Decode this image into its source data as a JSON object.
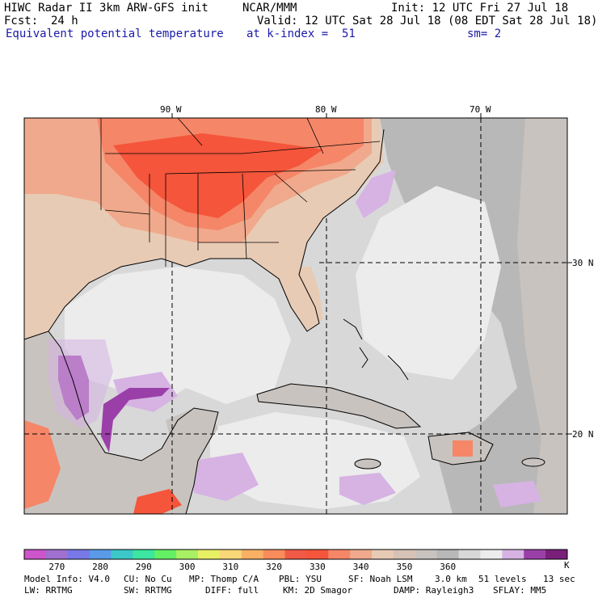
{
  "header": {
    "title": "HIWC Radar II 3km ARW-GFS init",
    "org": "NCAR/MMM",
    "init": "Init: 12 UTC Fri 27 Jul 18",
    "fcst_label": "Fcst:",
    "fcst_value": "24 h",
    "valid": "Valid: 12 UTC Sat 28 Jul 18 (08 EDT Sat 28 Jul 18)",
    "field": "Equivalent potential temperature",
    "level": "at k-index =  51",
    "smooth": "sm= 2"
  },
  "map": {
    "lon_labels": [
      "90 W",
      "80 W",
      "70 W"
    ],
    "lat_labels": [
      "30 N",
      "20 N"
    ],
    "colors": {
      "hot": "#f4553b",
      "warm": "#f58668",
      "mild": "#f0a98c",
      "tan": "#e8cbb5",
      "land_gray": "#c9c3bf",
      "gray": "#b8b8b8",
      "light_gray": "#d8d8d8",
      "very_light": "#ececec",
      "lilac": "#d6b3e3",
      "purple": "#9b3fa8"
    }
  },
  "colorbar": {
    "colors": [
      "#cc55cc",
      "#a070d0",
      "#7878e8",
      "#5a9ae8",
      "#3cc8c8",
      "#3ce6a0",
      "#64f064",
      "#a8f064",
      "#e8f064",
      "#f8d878",
      "#f8b064",
      "#f88c5a",
      "#f05a46",
      "#f4553b",
      "#f58668",
      "#f0a98c",
      "#e8cbb5",
      "#d6c2b6",
      "#c9c3bf",
      "#b8b8b8",
      "#d8d8d8",
      "#ececec",
      "#d6b3e3",
      "#9b3fa8",
      "#7a1f7a"
    ],
    "ticks": [
      "270",
      "280",
      "290",
      "300",
      "310",
      "320",
      "330",
      "340",
      "350",
      "360"
    ],
    "unit": "K"
  },
  "footer": {
    "line1": [
      "Model Info: V4.0",
      "CU: No Cu",
      "MP: Thomp C/A",
      "PBL: YSU",
      "SF: Noah LSM",
      "3.0 km",
      "51 levels",
      "13 sec"
    ],
    "line2": [
      "LW: RRTMG",
      "SW: RRTMG",
      "DIFF: full",
      "KM: 2D Smagor",
      "DAMP: Rayleigh3",
      "SFLAY: MM5"
    ]
  }
}
